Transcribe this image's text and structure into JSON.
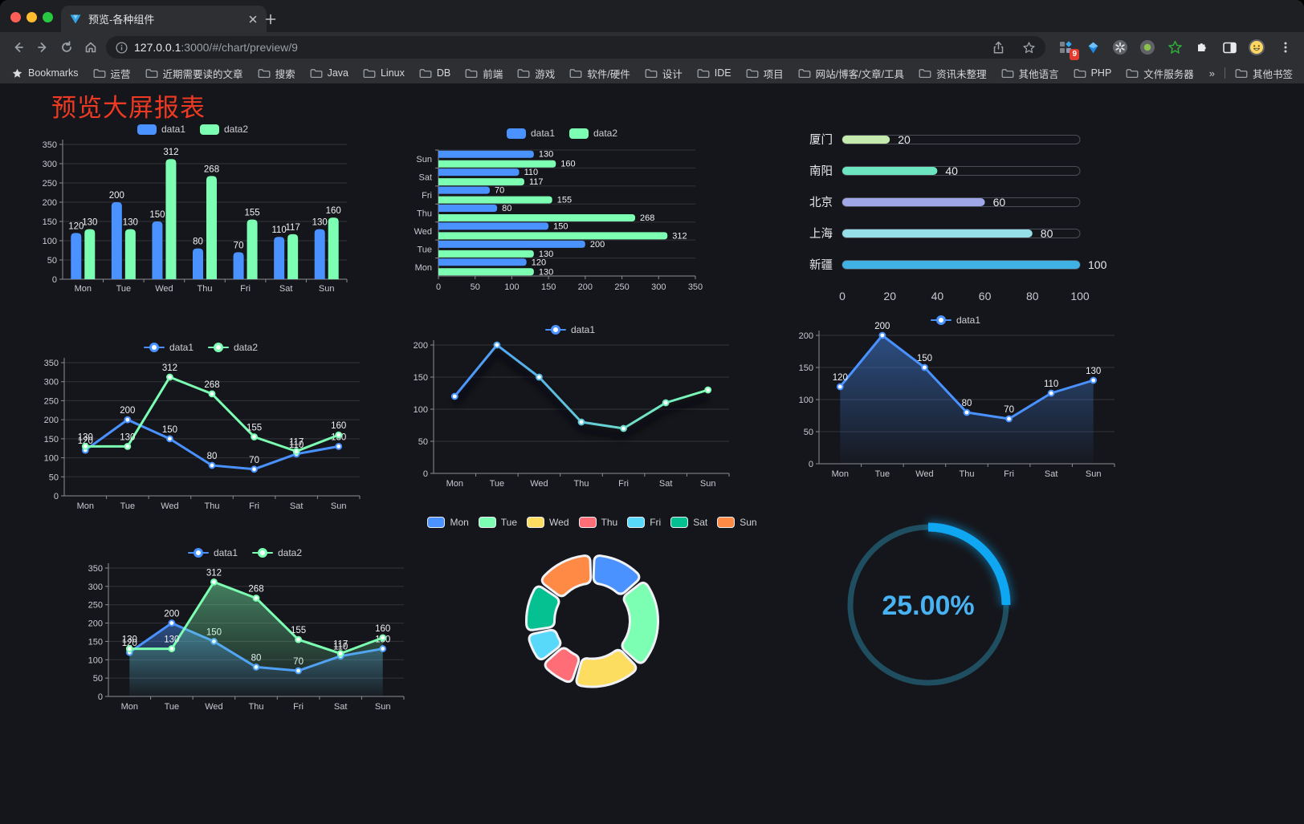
{
  "browser": {
    "traffic_lights": [
      "#ff5f57",
      "#febc2e",
      "#28c840"
    ],
    "tab": {
      "title": "预览-各种组件"
    },
    "nav": {
      "url_host": "127.0.0.1",
      "url_rest": ":3000/#/chart/preview/9"
    },
    "nav_icons": [
      "back",
      "forward",
      "reload",
      "home"
    ],
    "extensions_badge": "9",
    "extension_icons": [
      "extensions-grid",
      "gem",
      "asterisk-wheel",
      "record",
      "star-outline-green",
      "puzzle",
      "side-panel",
      "emoji-avatar"
    ],
    "bookmarks": {
      "label": "Bookmarks",
      "folders": [
        "运营",
        "近期需要读的文章",
        "搜索",
        "Java",
        "Linux",
        "DB",
        "前端",
        "游戏",
        "软件/硬件",
        "设计",
        "IDE",
        "项目",
        "网站/博客/文章/工具",
        "资讯未整理",
        "其他语言",
        "PHP",
        "文件服务器"
      ],
      "overflow": "»",
      "other": "其他书签"
    }
  },
  "page": {
    "title": "预览大屏报表",
    "title_color": "#ee3a23",
    "background": "#15161b"
  },
  "chart_data": [
    {
      "type": "bar",
      "title": "",
      "categories": [
        "Mon",
        "Tue",
        "Wed",
        "Thu",
        "Fri",
        "Sat",
        "Sun"
      ],
      "series": [
        {
          "name": "data1",
          "color": "#4992ff",
          "values": [
            120,
            200,
            150,
            80,
            70,
            110,
            130
          ]
        },
        {
          "name": "data2",
          "color": "#7cffb2",
          "values": [
            130,
            130,
            312,
            268,
            155,
            117,
            160
          ]
        }
      ],
      "ylim": [
        0,
        350
      ],
      "ystep": 50,
      "grid": true,
      "legend_position": "top"
    },
    {
      "type": "bar-horizontal",
      "title": "",
      "categories": [
        "Mon",
        "Tue",
        "Wed",
        "Thu",
        "Fri",
        "Sat",
        "Sun"
      ],
      "series": [
        {
          "name": "data1",
          "color": "#4992ff",
          "values": [
            120,
            200,
            150,
            80,
            70,
            110,
            130
          ]
        },
        {
          "name": "data2",
          "color": "#7cffb2",
          "values": [
            130,
            130,
            312,
            268,
            155,
            117,
            160
          ]
        }
      ],
      "xlim": [
        0,
        350
      ],
      "xstep": 50,
      "grid": true,
      "legend_position": "top"
    },
    {
      "type": "bar",
      "variant": "progress",
      "title": "",
      "max": 100,
      "items": [
        {
          "label": "厦门",
          "value": 20,
          "color": "#c4ebad"
        },
        {
          "label": "南阳",
          "value": 40,
          "color": "#6be6c1"
        },
        {
          "label": "北京",
          "value": 60,
          "color": "#a0a7e6"
        },
        {
          "label": "上海",
          "value": 80,
          "color": "#96dee8"
        },
        {
          "label": "新疆",
          "value": 100,
          "color": "#3fb1e3"
        }
      ],
      "xticks": [
        0,
        20,
        40,
        60,
        80,
        100
      ]
    },
    {
      "type": "line",
      "title": "",
      "categories": [
        "Mon",
        "Tue",
        "Wed",
        "Thu",
        "Fri",
        "Sat",
        "Sun"
      ],
      "series": [
        {
          "name": "data1",
          "color": "#4992ff",
          "values": [
            120,
            200,
            150,
            80,
            70,
            110,
            130
          ],
          "labels": true
        },
        {
          "name": "data2",
          "color": "#7cffb2",
          "values": [
            130,
            130,
            312,
            268,
            155,
            117,
            160
          ],
          "labels": true
        }
      ],
      "ylim": [
        0,
        350
      ],
      "ystep": 50,
      "grid": true,
      "legend_position": "top"
    },
    {
      "type": "line",
      "title": "",
      "categories": [
        "Mon",
        "Tue",
        "Wed",
        "Thu",
        "Fri",
        "Sat",
        "Sun"
      ],
      "series": [
        {
          "name": "data1",
          "gradient": [
            "#4992ff",
            "#7cffb2"
          ],
          "values": [
            120,
            200,
            150,
            80,
            70,
            110,
            130
          ],
          "labels": false,
          "shadow": true
        }
      ],
      "ylim": [
        0,
        200
      ],
      "ystep": 50,
      "grid": true,
      "legend_position": "top"
    },
    {
      "type": "area",
      "title": "",
      "categories": [
        "Mon",
        "Tue",
        "Wed",
        "Thu",
        "Fri",
        "Sat",
        "Sun"
      ],
      "series": [
        {
          "name": "data1",
          "color": "#4992ff",
          "values": [
            120,
            200,
            150,
            80,
            70,
            110,
            130
          ],
          "labels": true,
          "area": true
        }
      ],
      "ylim": [
        0,
        200
      ],
      "ystep": 50,
      "grid": true,
      "legend_position": "top"
    },
    {
      "type": "area",
      "title": "",
      "categories": [
        "Mon",
        "Tue",
        "Wed",
        "Thu",
        "Fri",
        "Sat",
        "Sun"
      ],
      "series": [
        {
          "name": "data1",
          "color": "#4992ff",
          "values": [
            120,
            200,
            150,
            80,
            70,
            110,
            130
          ],
          "labels": true,
          "area": true
        },
        {
          "name": "data2",
          "color": "#7cffb2",
          "values": [
            130,
            130,
            312,
            268,
            155,
            117,
            160
          ],
          "labels": true,
          "area": true
        }
      ],
      "ylim": [
        0,
        350
      ],
      "ystep": 50,
      "grid": true,
      "legend_position": "top"
    },
    {
      "type": "pie",
      "variant": "donut-rounded",
      "title": "",
      "categories": [
        "Mon",
        "Tue",
        "Wed",
        "Thu",
        "Fri",
        "Sat",
        "Sun"
      ],
      "values": [
        120,
        200,
        150,
        80,
        70,
        110,
        130
      ],
      "colors": [
        "#4992ff",
        "#7cffb2",
        "#fddd60",
        "#ff6e76",
        "#58d9f9",
        "#05c091",
        "#ff8a45"
      ],
      "border_color": "#eef1f6",
      "legend_position": "top"
    },
    {
      "type": "gauge",
      "variant": "ring-progress",
      "value": 25,
      "label": "25.00%",
      "track_color": "#1e4e5f",
      "arc_color": "#0fa6f2",
      "text_color": "#49b2f2"
    }
  ]
}
